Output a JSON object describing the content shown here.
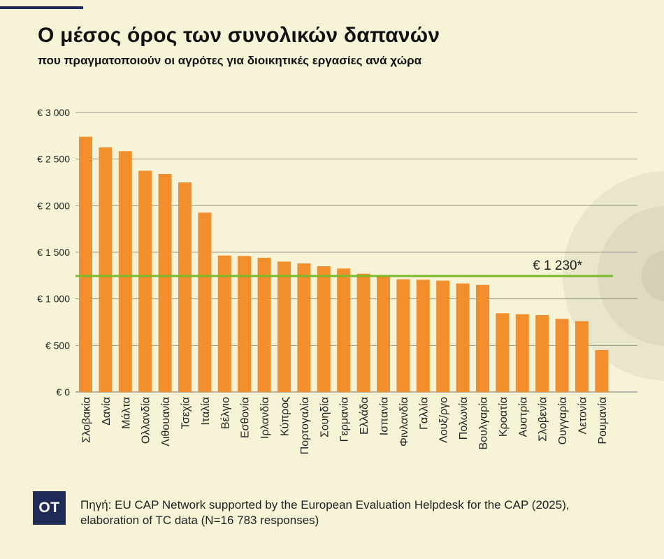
{
  "header": {
    "title": "Ο μέσος όρος των συνολικών δαπανών",
    "subtitle": "που πραγματοποιούν οι αγρότες για διοικητικές εργασίες ανά χώρα"
  },
  "chart_data": {
    "type": "bar",
    "title": "Ο μέσος όρος των συνολικών δαπανών",
    "subtitle": "που πραγματοποιούν οι αγρότες για διοικητικές εργασίες ανά χώρα",
    "xlabel": "",
    "ylabel": "",
    "ylim": [
      0,
      3000
    ],
    "yticks": [
      0,
      500,
      1000,
      1500,
      2000,
      2500,
      3000
    ],
    "ytick_labels": [
      "€ 0",
      "€ 500",
      "€ 1 000",
      "€ 1 500",
      "€ 2 000",
      "€ 2 500",
      "€ 3 000"
    ],
    "grid": true,
    "categories": [
      "Σλοβακία",
      "Δανία",
      "Μάλτα",
      "Ολλανδία",
      "Λιθουανία",
      "Τσεχία",
      "Ιταλία",
      "Βέλγιο",
      "Εσθονία",
      "Ιρλανδία",
      "Κύπρος",
      "Πορτογαλία",
      "Σουηδία",
      "Γερμανία",
      "Ελλάδα",
      "Ισπανία",
      "Φινλανδία",
      "Γαλλία",
      "Λουξ/ργο",
      "Πολωνία",
      "Βουλγαρία",
      "Κροατία",
      "Αυστρία",
      "Σλοβενία",
      "Ουγγαρία",
      "Λετονία",
      "Ρουμανία"
    ],
    "values": [
      2740,
      2625,
      2585,
      2375,
      2340,
      2250,
      1925,
      1465,
      1460,
      1440,
      1400,
      1380,
      1350,
      1325,
      1270,
      1235,
      1210,
      1205,
      1195,
      1165,
      1150,
      845,
      835,
      825,
      785,
      760,
      450
    ],
    "reference_line": {
      "value": 1230,
      "label": "€ 1 230*",
      "color": "#7ab929"
    },
    "bar_color": "#f28e2b"
  },
  "footer": {
    "logo_text": "OT",
    "source_line1": "Πηγή: EU CAP Network supported by the European Evaluation Helpdesk for the CAP (2025),",
    "source_line2": "elaboration of TC data (N=16 783 responses)"
  }
}
